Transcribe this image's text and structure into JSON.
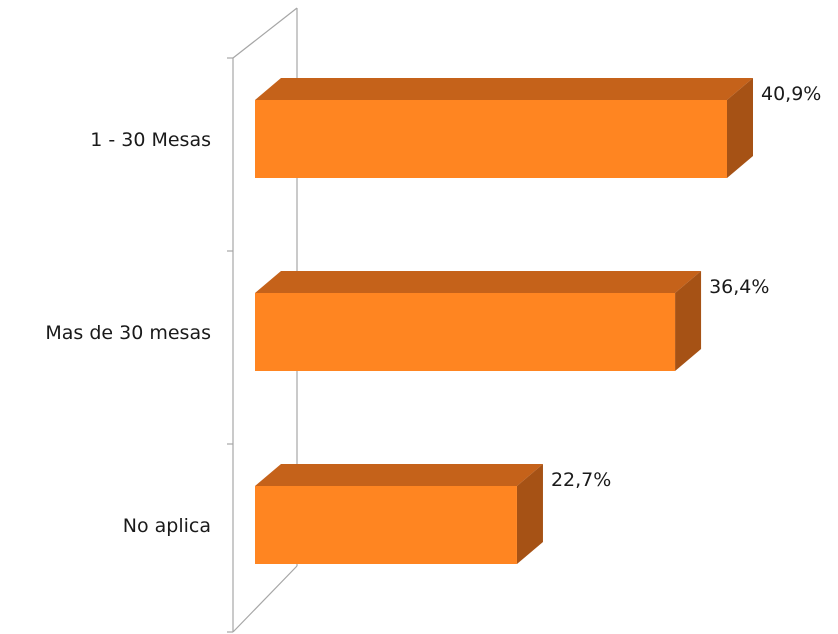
{
  "chart_data": {
    "type": "bar",
    "orientation": "horizontal",
    "style": "3d",
    "categories": [
      "1 - 30 Mesas",
      "Mas de 30 mesas",
      "No aplica"
    ],
    "values": [
      40.9,
      36.4,
      22.7
    ],
    "value_labels": [
      "40,9%",
      "36,4%",
      "22,7%"
    ],
    "title": "",
    "xlabel": "",
    "ylabel": "",
    "xlim": [
      0,
      45
    ],
    "grid": false,
    "legend": "none",
    "colors": {
      "bar_front": "#FF8521",
      "bar_top": "#C5621A",
      "bar_side": "#A65215",
      "axis_wall": "#a6a6a6"
    }
  }
}
